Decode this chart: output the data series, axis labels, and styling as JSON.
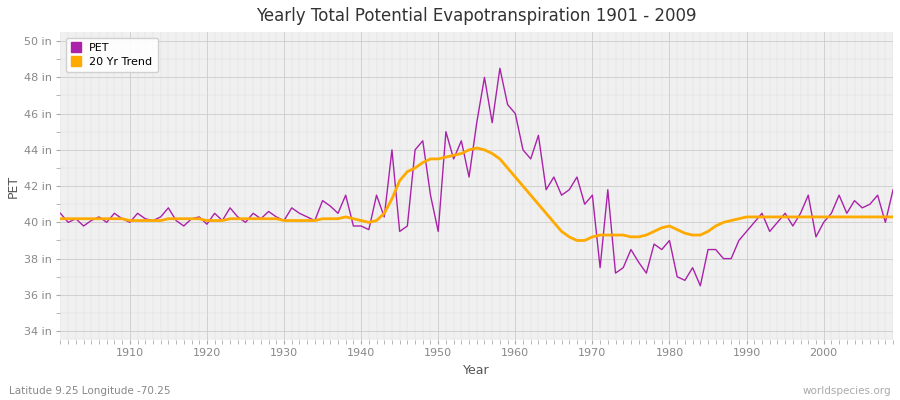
{
  "title": "Yearly Total Potential Evapotranspiration 1901 - 2009",
  "xlabel": "Year",
  "ylabel": "PET",
  "pet_color": "#aa22aa",
  "trend_color": "#ffaa00",
  "bg_color": "#ffffff",
  "plot_bg_color": "#f0f0f0",
  "ylim": [
    33.5,
    50.5
  ],
  "yticks": [
    34,
    36,
    38,
    40,
    42,
    44,
    46,
    48,
    50
  ],
  "ytick_labels": [
    "34 in",
    "36 in",
    "38 in",
    "40 in",
    "42 in",
    "44 in",
    "46 in",
    "48 in",
    "50 in"
  ],
  "xticks": [
    1910,
    1920,
    1930,
    1940,
    1950,
    1960,
    1970,
    1980,
    1990,
    2000
  ],
  "xlim": [
    1901,
    2009
  ],
  "legend_labels": [
    "PET",
    "20 Yr Trend"
  ],
  "footnote_left": "Latitude 9.25 Longitude -70.25",
  "footnote_right": "worldspecies.org",
  "years": [
    1901,
    1902,
    1903,
    1904,
    1905,
    1906,
    1907,
    1908,
    1909,
    1910,
    1911,
    1912,
    1913,
    1914,
    1915,
    1916,
    1917,
    1918,
    1919,
    1920,
    1921,
    1922,
    1923,
    1924,
    1925,
    1926,
    1927,
    1928,
    1929,
    1930,
    1931,
    1932,
    1933,
    1934,
    1935,
    1936,
    1937,
    1938,
    1939,
    1940,
    1941,
    1942,
    1943,
    1944,
    1945,
    1946,
    1947,
    1948,
    1949,
    1950,
    1951,
    1952,
    1953,
    1954,
    1955,
    1956,
    1957,
    1958,
    1959,
    1960,
    1961,
    1962,
    1963,
    1964,
    1965,
    1966,
    1967,
    1968,
    1969,
    1970,
    1971,
    1972,
    1973,
    1974,
    1975,
    1976,
    1977,
    1978,
    1979,
    1980,
    1981,
    1982,
    1983,
    1984,
    1985,
    1986,
    1987,
    1988,
    1989,
    1990,
    1991,
    1992,
    1993,
    1994,
    1995,
    1996,
    1997,
    1998,
    1999,
    2000,
    2001,
    2002,
    2003,
    2004,
    2005,
    2006,
    2007,
    2008,
    2009
  ],
  "pet_values": [
    40.5,
    40.0,
    40.2,
    39.8,
    40.1,
    40.3,
    40.0,
    40.5,
    40.2,
    40.0,
    40.5,
    40.2,
    40.1,
    40.3,
    40.8,
    40.1,
    39.8,
    40.2,
    40.3,
    39.9,
    40.5,
    40.1,
    40.8,
    40.3,
    40.0,
    40.5,
    40.2,
    40.6,
    40.3,
    40.1,
    40.8,
    40.5,
    40.3,
    40.1,
    41.2,
    40.9,
    40.5,
    41.5,
    39.8,
    39.8,
    39.6,
    41.5,
    40.3,
    44.0,
    39.5,
    39.8,
    44.0,
    44.5,
    41.5,
    39.5,
    45.0,
    43.5,
    44.5,
    42.5,
    45.5,
    48.0,
    45.5,
    48.5,
    46.5,
    46.0,
    44.0,
    43.5,
    44.8,
    41.8,
    42.5,
    41.5,
    41.8,
    42.5,
    41.0,
    41.5,
    37.5,
    41.8,
    37.2,
    37.5,
    38.5,
    37.8,
    37.2,
    38.8,
    38.5,
    39.0,
    37.0,
    36.8,
    37.5,
    36.5,
    38.5,
    38.5,
    38.0,
    38.0,
    39.0,
    39.5,
    40.0,
    40.5,
    39.5,
    40.0,
    40.5,
    39.8,
    40.5,
    41.5,
    39.2,
    40.0,
    40.5,
    41.5,
    40.5,
    41.2,
    40.8,
    41.0,
    41.5,
    40.0,
    41.8
  ],
  "trend_values": [
    40.2,
    40.2,
    40.2,
    40.2,
    40.2,
    40.2,
    40.2,
    40.2,
    40.2,
    40.1,
    40.1,
    40.1,
    40.1,
    40.1,
    40.2,
    40.2,
    40.2,
    40.2,
    40.2,
    40.1,
    40.1,
    40.1,
    40.2,
    40.2,
    40.2,
    40.2,
    40.2,
    40.2,
    40.2,
    40.1,
    40.1,
    40.1,
    40.1,
    40.1,
    40.2,
    40.2,
    40.2,
    40.3,
    40.2,
    40.1,
    40.0,
    40.1,
    40.5,
    41.3,
    42.3,
    42.8,
    43.0,
    43.3,
    43.5,
    43.5,
    43.6,
    43.7,
    43.8,
    44.0,
    44.1,
    44.0,
    43.8,
    43.5,
    43.0,
    42.5,
    42.0,
    41.5,
    41.0,
    40.5,
    40.0,
    39.5,
    39.2,
    39.0,
    39.0,
    39.2,
    39.3,
    39.3,
    39.3,
    39.3,
    39.2,
    39.2,
    39.3,
    39.5,
    39.7,
    39.8,
    39.6,
    39.4,
    39.3,
    39.3,
    39.5,
    39.8,
    40.0,
    40.1,
    40.2,
    40.3,
    40.3,
    40.3,
    40.3,
    40.3,
    40.3,
    40.3,
    40.3,
    40.3,
    40.3,
    40.3,
    40.3,
    40.3,
    40.3,
    40.3,
    40.3,
    40.3,
    40.3,
    40.3,
    40.3
  ]
}
